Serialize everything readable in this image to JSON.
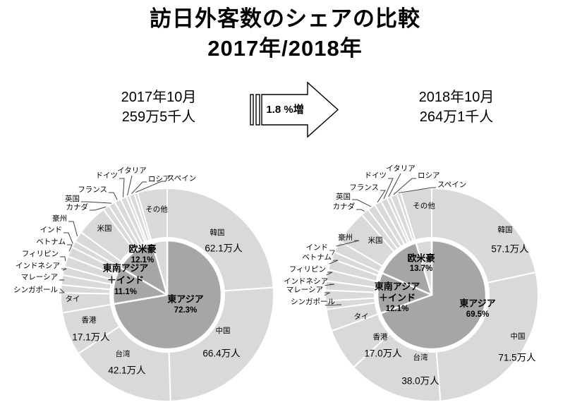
{
  "title": {
    "line1": "訪日外客数のシェアの比較",
    "line2": "2017年/2018年"
  },
  "periods": {
    "left": {
      "date": "2017年10月",
      "total": "259万5千人"
    },
    "right": {
      "date": "2018年10月",
      "total": "264万1千人"
    }
  },
  "arrow": {
    "label": "1.8 %増",
    "direction": "right"
  },
  "colors": {
    "ring": "#d9d9d9",
    "inner": "#a6a6a6",
    "inner_light": "#d9d9d9",
    "stroke": "#ffffff",
    "leader": "#404040",
    "text": "#000000"
  },
  "chart_data": [
    {
      "type": "pie",
      "id": "pie-2017",
      "title": "2017年10月",
      "total_label": "259万5千人",
      "center": [
        237,
        204
      ],
      "radii": {
        "outer": 151,
        "ring_inner": 81,
        "inner_pie": 77
      },
      "groups": [
        {
          "name": "東アジア",
          "pct": 72.3,
          "lines": [
            "東アジア",
            "72.3%"
          ],
          "pos": [
            26,
            6
          ],
          "lh": 16,
          "color": "inner"
        },
        {
          "name": "東南アジア＋インド",
          "pct": 11.1,
          "lines": [
            "東南アジア",
            "＋インド",
            "11.1%"
          ],
          "pos": [
            -59,
            -38
          ],
          "lh": 17,
          "color": "inner"
        },
        {
          "name": "欧米豪",
          "pct": 12.1,
          "lines": [
            "欧米豪",
            "12.1%"
          ],
          "pos": [
            -35,
            -65
          ],
          "lh": 16,
          "color": "inner"
        },
        {
          "name": "その他",
          "pct": 4.5,
          "lines": [],
          "pos": [
            0,
            0
          ],
          "lh": 0,
          "color": "inner_light"
        }
      ],
      "slices": [
        {
          "name": "韓国",
          "pct": 23.9,
          "value_label": "62.1万人"
        },
        {
          "name": "中国",
          "pct": 25.6,
          "value_label": "66.4万人"
        },
        {
          "name": "台湾",
          "pct": 16.2,
          "value_label": "42.1万人"
        },
        {
          "name": "香港",
          "pct": 6.6,
          "value_label": "17.1万人"
        },
        {
          "name": "タイ",
          "pct": 3.0
        },
        {
          "name": "シンガポール",
          "pct": 1.2
        },
        {
          "name": "マレーシア",
          "pct": 1.5
        },
        {
          "name": "インドネシア",
          "pct": 1.3
        },
        {
          "name": "フィリピン",
          "pct": 1.6
        },
        {
          "name": "ベトナム",
          "pct": 1.5
        },
        {
          "name": "インド",
          "pct": 1.0
        },
        {
          "name": "豪州",
          "pct": 1.6
        },
        {
          "name": "米国",
          "pct": 4.8
        },
        {
          "name": "カナダ",
          "pct": 1.0
        },
        {
          "name": "英国",
          "pct": 1.0
        },
        {
          "name": "フランス",
          "pct": 1.0
        },
        {
          "name": "ドイツ",
          "pct": 0.9
        },
        {
          "name": "イタリア",
          "pct": 0.5
        },
        {
          "name": "ロシア",
          "pct": 0.8
        },
        {
          "name": "スペイン",
          "pct": 0.5
        },
        {
          "name": "その他",
          "pct": 4.5
        }
      ],
      "labels": [
        {
          "kind": "ring-name",
          "text": "韓国",
          "pos": [
            71,
            -88
          ]
        },
        {
          "kind": "ring-value",
          "text": "62.1万人",
          "pos": [
            80,
            -66
          ]
        },
        {
          "kind": "ring-name",
          "text": "中国",
          "pos": [
            79,
            51
          ]
        },
        {
          "kind": "ring-value",
          "text": "66.4万人",
          "pos": [
            77,
            83
          ]
        },
        {
          "kind": "ring-name",
          "text": "台湾",
          "pos": [
            -63,
            84
          ]
        },
        {
          "kind": "ring-value",
          "text": "42.1万人",
          "pos": [
            -57,
            107
          ]
        },
        {
          "kind": "ring-name",
          "text": "香港",
          "pos": [
            -111,
            36
          ]
        },
        {
          "kind": "ring-value",
          "text": "17.1万人",
          "pos": [
            -108,
            60
          ]
        },
        {
          "kind": "ring-name",
          "text": "タイ",
          "pos": [
            -134,
            6
          ]
        },
        {
          "kind": "ring-name",
          "text": "米国",
          "pos": [
            -89,
            -94
          ]
        },
        {
          "kind": "ring-name",
          "text": "その他",
          "pos": [
            -15,
            -121
          ]
        },
        {
          "kind": "callout",
          "text": "シンガポール",
          "pos": [
            -155,
            -7
          ],
          "anchor": "end",
          "target": "シンガポール"
        },
        {
          "kind": "callout",
          "text": "マレーシア",
          "pos": [
            -155,
            -25
          ],
          "anchor": "end",
          "target": "マレーシア"
        },
        {
          "kind": "callout",
          "text": "インドネシア",
          "pos": [
            -152,
            -41
          ],
          "anchor": "end",
          "target": "インドネシア"
        },
        {
          "kind": "callout",
          "text": "フィリピン",
          "pos": [
            -154,
            -58
          ],
          "anchor": "end",
          "target": "フィリピン"
        },
        {
          "kind": "callout",
          "text": "ベトナム",
          "pos": [
            -144,
            -75
          ],
          "anchor": "end",
          "target": "ベトナム"
        },
        {
          "kind": "callout",
          "text": "インド",
          "pos": [
            -149,
            -92
          ],
          "anchor": "end",
          "target": "インド"
        },
        {
          "kind": "callout",
          "text": "豪州",
          "pos": [
            -142,
            -108
          ],
          "anchor": "end",
          "target": "豪州"
        },
        {
          "kind": "callout",
          "text": "カナダ",
          "pos": [
            -112,
            -124
          ],
          "anchor": "end",
          "target": "カナダ"
        },
        {
          "kind": "callout",
          "text": "英国",
          "pos": [
            -124,
            -136
          ],
          "anchor": "end",
          "target": "英国"
        },
        {
          "kind": "callout",
          "text": "フランス",
          "pos": [
            -85,
            -149
          ],
          "anchor": "end",
          "target": "フランス"
        },
        {
          "kind": "callout",
          "text": "ドイツ",
          "pos": [
            -70,
            -169
          ],
          "anchor": "end",
          "target": "ドイツ"
        },
        {
          "kind": "callout",
          "text": "イタリア",
          "pos": [
            -50,
            -176
          ],
          "anchor": "middle",
          "target": "イタリア"
        },
        {
          "kind": "callout",
          "text": "ロシア",
          "pos": [
            -27,
            -164
          ],
          "anchor": "start",
          "target": "ロシア"
        },
        {
          "kind": "callout",
          "text": "スペイン",
          "pos": [
            0,
            -165
          ],
          "anchor": "start",
          "target": "スペイン"
        }
      ]
    },
    {
      "type": "pie",
      "id": "pie-2018",
      "title": "2018年10月",
      "total_label": "264万1千人",
      "center": [
        612,
        204
      ],
      "radii": {
        "outer": 151,
        "ring_inner": 81,
        "inner_pie": 77
      },
      "groups": [
        {
          "name": "東アジア",
          "pct": 69.5,
          "lines": [
            "東アジア",
            "69.5%"
          ],
          "pos": [
            65,
            12
          ],
          "lh": 16,
          "color": "inner"
        },
        {
          "name": "東南アジア＋インド",
          "pct": 12.1,
          "lines": [
            "東南アジア",
            "＋インド",
            "12.1%"
          ],
          "pos": [
            -49,
            -12
          ],
          "lh": 16,
          "color": "inner"
        },
        {
          "name": "欧米豪",
          "pct": 13.7,
          "lines": [
            "欧米豪",
            "13.7%"
          ],
          "pos": [
            -15,
            -52
          ],
          "lh": 15,
          "color": "inner"
        },
        {
          "name": "その他",
          "pct": 4.7,
          "lines": [],
          "pos": [
            0,
            0
          ],
          "lh": 0,
          "color": "inner_light"
        }
      ],
      "slices": [
        {
          "name": "韓国",
          "pct": 21.6,
          "value_label": "57.1万人"
        },
        {
          "name": "中国",
          "pct": 27.1,
          "value_label": "71.5万人"
        },
        {
          "name": "台湾",
          "pct": 14.4,
          "value_label": "38.0万人"
        },
        {
          "name": "香港",
          "pct": 6.4,
          "value_label": "17.0万人"
        },
        {
          "name": "タイ",
          "pct": 3.3
        },
        {
          "name": "シンガポール",
          "pct": 1.3
        },
        {
          "name": "マレーシア",
          "pct": 1.6
        },
        {
          "name": "インドネシア",
          "pct": 1.4
        },
        {
          "name": "フィリピン",
          "pct": 1.7
        },
        {
          "name": "ベトナム",
          "pct": 1.7
        },
        {
          "name": "インド",
          "pct": 1.1
        },
        {
          "name": "豪州",
          "pct": 1.8
        },
        {
          "name": "米国",
          "pct": 5.2
        },
        {
          "name": "カナダ",
          "pct": 1.2
        },
        {
          "name": "英国",
          "pct": 1.2
        },
        {
          "name": "フランス",
          "pct": 1.1
        },
        {
          "name": "ドイツ",
          "pct": 1.0
        },
        {
          "name": "イタリア",
          "pct": 0.6
        },
        {
          "name": "ロシア",
          "pct": 1.0
        },
        {
          "name": "スペイン",
          "pct": 0.6
        },
        {
          "name": "その他",
          "pct": 4.7
        }
      ],
      "labels": [
        {
          "kind": "ring-name",
          "text": "韓国",
          "pos": [
            104,
            -92
          ]
        },
        {
          "kind": "ring-value",
          "text": "57.1万人",
          "pos": [
            111,
            -65
          ]
        },
        {
          "kind": "ring-name",
          "text": "中国",
          "pos": [
            122,
            59
          ]
        },
        {
          "kind": "ring-value",
          "text": "71.5万人",
          "pos": [
            121,
            89
          ]
        },
        {
          "kind": "ring-name",
          "text": "台湾",
          "pos": [
            -16,
            89
          ]
        },
        {
          "kind": "ring-value",
          "text": "38.0万人",
          "pos": [
            -16,
            122
          ]
        },
        {
          "kind": "ring-name",
          "text": "香港",
          "pos": [
            -73,
            60
          ]
        },
        {
          "kind": "ring-value",
          "text": "17.0万人",
          "pos": [
            -69,
            83
          ]
        },
        {
          "kind": "ring-name",
          "text": "タイ",
          "pos": [
            -100,
            31
          ]
        },
        {
          "kind": "ring-name",
          "text": "米国",
          "pos": [
            -80,
            -77
          ]
        },
        {
          "kind": "ring-name",
          "text": "その他",
          "pos": [
            -11,
            -126
          ]
        },
        {
          "kind": "callout",
          "text": "シンガポール",
          "pos": [
            -137,
            10
          ],
          "anchor": "end",
          "target": "シンガポール"
        },
        {
          "kind": "callout",
          "text": "マレーシア",
          "pos": [
            -154,
            -7
          ],
          "anchor": "end",
          "target": "マレーシア"
        },
        {
          "kind": "callout",
          "text": "インドネシア",
          "pos": [
            -147,
            -19
          ],
          "anchor": "end",
          "target": "インドネシア"
        },
        {
          "kind": "callout",
          "text": "フィリピン",
          "pos": [
            -150,
            -36
          ],
          "anchor": "end",
          "target": "フィリピン"
        },
        {
          "kind": "callout",
          "text": "ベトナム",
          "pos": [
            -142,
            -53
          ],
          "anchor": "end",
          "target": "ベトナム"
        },
        {
          "kind": "callout",
          "text": "インド",
          "pos": [
            -147,
            -67
          ],
          "anchor": "end",
          "target": "インド"
        },
        {
          "kind": "callout",
          "text": "豪州",
          "pos": [
            -112,
            -81
          ],
          "anchor": "end",
          "target": "豪州"
        },
        {
          "kind": "callout",
          "text": "カナダ",
          "pos": [
            -109,
            -125
          ],
          "anchor": "end",
          "target": "カナダ"
        },
        {
          "kind": "callout",
          "text": "英国",
          "pos": [
            -115,
            -139
          ],
          "anchor": "end",
          "target": "英国"
        },
        {
          "kind": "callout",
          "text": "フランス",
          "pos": [
            -75,
            -152
          ],
          "anchor": "end",
          "target": "フランス"
        },
        {
          "kind": "callout",
          "text": "ドイツ",
          "pos": [
            -64,
            -169
          ],
          "anchor": "end",
          "target": "ドイツ"
        },
        {
          "kind": "callout",
          "text": "イタリア",
          "pos": [
            -44,
            -179
          ],
          "anchor": "middle",
          "target": "イタリア"
        },
        {
          "kind": "callout",
          "text": "ロシア",
          "pos": [
            -20,
            -169
          ],
          "anchor": "start",
          "target": "ロシア"
        },
        {
          "kind": "callout",
          "text": "スペイン",
          "pos": [
            8,
            -156
          ],
          "anchor": "start",
          "target": "スペイン"
        }
      ]
    }
  ]
}
